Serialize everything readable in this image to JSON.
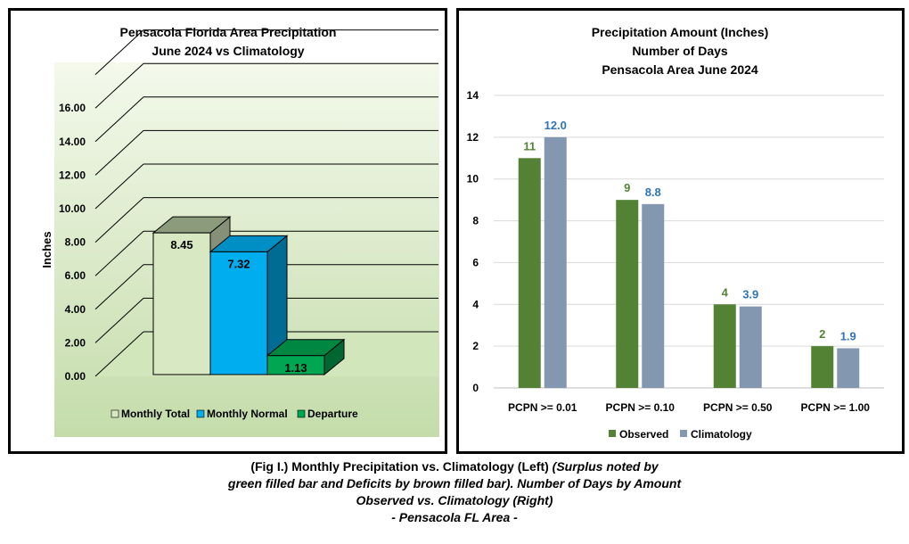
{
  "chart_data": [
    {
      "type": "bar",
      "title": [
        "Pensacola Florida Area Precipitation",
        "June 2024 vs Climatology"
      ],
      "ylabel": "Inches",
      "ylim": [
        0,
        16
      ],
      "yticks": [
        "0.00",
        "2.00",
        "4.00",
        "6.00",
        "8.00",
        "10.00",
        "12.00",
        "14.00",
        "16.00"
      ],
      "grid": true,
      "legend_position": "bottom",
      "style": "3d",
      "series": [
        {
          "name": "Monthly Total",
          "value": 8.45,
          "label": "8.45",
          "color": "#d8e8c2"
        },
        {
          "name": "Monthly Normal",
          "value": 7.32,
          "label": "7.32",
          "color": "#00aeef"
        },
        {
          "name": "Departure",
          "value": 1.13,
          "label": "1.13",
          "color": "#00a651"
        }
      ]
    },
    {
      "type": "bar",
      "title": [
        "Precipitation Amount (Inches)",
        "Number of Days",
        "Pensacola Area June 2024"
      ],
      "categories": [
        "PCPN >= 0.01",
        "PCPN >= 0.10",
        "PCPN >= 0.50",
        "PCPN >= 1.00"
      ],
      "ylim": [
        0,
        14
      ],
      "yticks": [
        "0",
        "2",
        "4",
        "6",
        "8",
        "10",
        "12",
        "14"
      ],
      "grid": true,
      "legend_position": "bottom",
      "series": [
        {
          "name": "Observed",
          "values": [
            11,
            9,
            4,
            2
          ],
          "labels": [
            "11",
            "9",
            "4",
            "2"
          ],
          "color": "#548235",
          "label_color": "#548235"
        },
        {
          "name": "Climatology",
          "values": [
            12.0,
            8.8,
            3.9,
            1.9
          ],
          "labels": [
            "12.0",
            "8.8",
            "3.9",
            "1.9"
          ],
          "color": "#8497b0",
          "label_color": "#2e75b6"
        }
      ]
    }
  ],
  "caption": {
    "line1_normal": "(Fig I.) Monthly Precipitation vs. Climatology (Left) ",
    "line1_italic": "(Surplus noted by",
    "line2": "green filled bar and Deficits by brown filled bar). Number of Days by Amount",
    "line3": "Observed vs. Climatology (Right)",
    "line4": "- Pensacola FL Area -"
  }
}
